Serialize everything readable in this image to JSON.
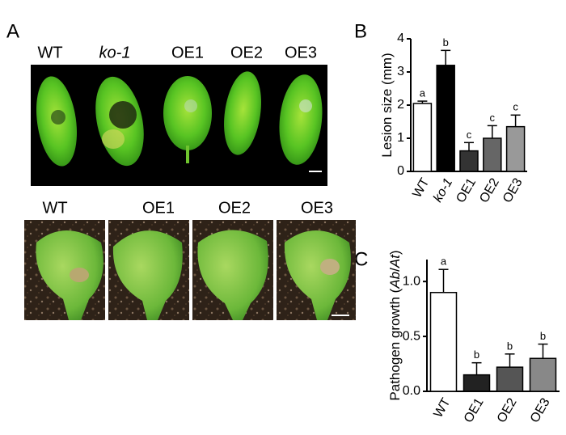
{
  "figure": {
    "panels": [
      "A",
      "B",
      "C"
    ],
    "photo_top": {
      "labels": [
        "WT",
        "ko-1",
        "OE1",
        "OE2",
        "OE3"
      ],
      "italic": [
        false,
        true,
        false,
        false,
        false
      ]
    },
    "photo_bottom": {
      "labels": [
        "WT",
        "OE1",
        "OE2",
        "OE3"
      ]
    }
  },
  "chart_data": [
    {
      "type": "bar",
      "ylabel": [
        "Lesion size (mm)"
      ],
      "ylabel_italic": [
        false
      ],
      "categories": [
        "WT",
        "ko-1",
        "OE1",
        "OE2",
        "OE3"
      ],
      "category_italic": [
        false,
        true,
        false,
        false,
        false
      ],
      "values": [
        2.05,
        3.2,
        0.62,
        1.0,
        1.35
      ],
      "errors": [
        0.07,
        0.45,
        0.25,
        0.38,
        0.35
      ],
      "annotations": [
        "a",
        "b",
        "c",
        "c",
        "c"
      ],
      "colors": [
        "#ffffff",
        "#000000",
        "#333333",
        "#666666",
        "#999999"
      ],
      "ylim": [
        0,
        4
      ],
      "yticks": [
        0,
        1,
        2,
        3,
        4
      ]
    },
    {
      "type": "bar",
      "ylabel": [
        "Pathogen growth (",
        "Ab",
        "/",
        "At",
        ")"
      ],
      "ylabel_italic": [
        false,
        true,
        false,
        true,
        false
      ],
      "categories": [
        "WT",
        "OE1",
        "OE2",
        "OE3"
      ],
      "category_italic": [
        false,
        false,
        false,
        false
      ],
      "values": [
        0.9,
        0.15,
        0.22,
        0.3
      ],
      "errors": [
        0.21,
        0.11,
        0.12,
        0.13
      ],
      "annotations": [
        "a",
        "b",
        "b",
        "b"
      ],
      "colors": [
        "#ffffff",
        "#222222",
        "#555555",
        "#888888"
      ],
      "ylim": [
        0,
        1.2
      ],
      "yticks": [
        {
          "value": 0,
          "label": "0.0"
        },
        0.5,
        {
          "value": 1,
          "label": "1.0"
        }
      ]
    }
  ]
}
